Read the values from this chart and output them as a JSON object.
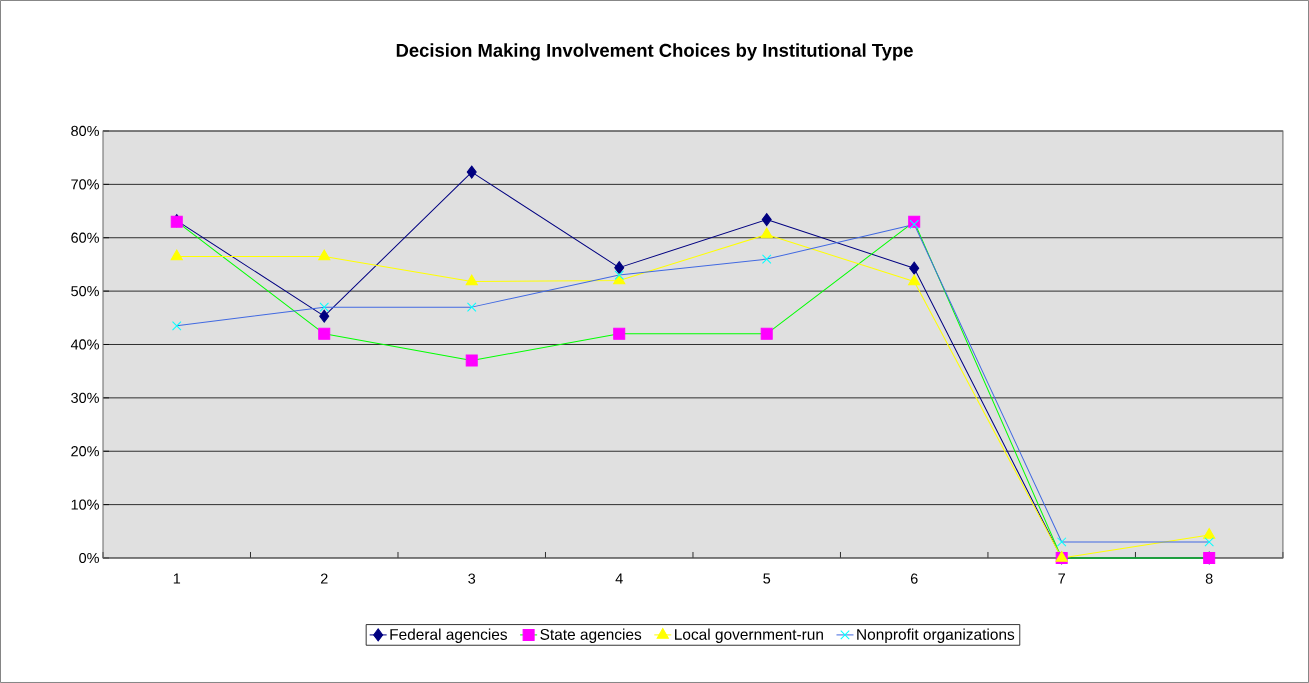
{
  "chart_data": {
    "type": "line",
    "title": "Decision Making Involvement Choices by Institutional Type",
    "categories": [
      "1",
      "2",
      "3",
      "4",
      "5",
      "6",
      "7",
      "8"
    ],
    "series": [
      {
        "name": "Federal agencies",
        "color": "#000080",
        "marker": "diamond",
        "values": [
          63.2,
          45.3,
          72.3,
          54.4,
          63.4,
          54.3,
          0,
          0
        ]
      },
      {
        "name": "State agencies",
        "color": "#00ff00",
        "colors": [
          "#ff00ff",
          "#ff00ff",
          "#ff00ff",
          "#ff00ff",
          "#ff00ff",
          "#ff00ff",
          "#ff00ff",
          "#ff00ff"
        ],
        "marker": "square",
        "values": [
          63,
          42,
          37,
          42,
          42,
          63,
          0,
          0
        ]
      },
      {
        "name": "Local government-run",
        "color": "#ffff00",
        "marker": "triangle",
        "values": [
          56.5,
          56.5,
          51.8,
          52,
          60.6,
          51.8,
          0,
          4.3
        ]
      },
      {
        "name": "Nonprofit organizations",
        "color": "#4169e1",
        "colors": [
          "#00ffff",
          "#00ffff",
          "#00ffff",
          "#00ffff",
          "#00ffff",
          "#00ffff",
          "#00ffff",
          "#00ffff"
        ],
        "marker": "cross",
        "values": [
          43.5,
          47,
          47,
          53,
          56,
          62.5,
          3,
          3
        ]
      }
    ],
    "ylim": [
      0,
      80
    ],
    "yticks": [
      {
        "value": 0,
        "label": "0%"
      },
      {
        "value": 10,
        "label": "10%"
      },
      {
        "value": 20,
        "label": "20%"
      },
      {
        "value": 30,
        "label": "30%"
      },
      {
        "value": 40,
        "label": "40%"
      },
      {
        "value": 50,
        "label": "50%"
      },
      {
        "value": 60,
        "label": "60%"
      },
      {
        "value": 70,
        "label": "70%"
      },
      {
        "value": 80,
        "label": "80%"
      }
    ],
    "grid": "y",
    "legend": "bottom"
  }
}
